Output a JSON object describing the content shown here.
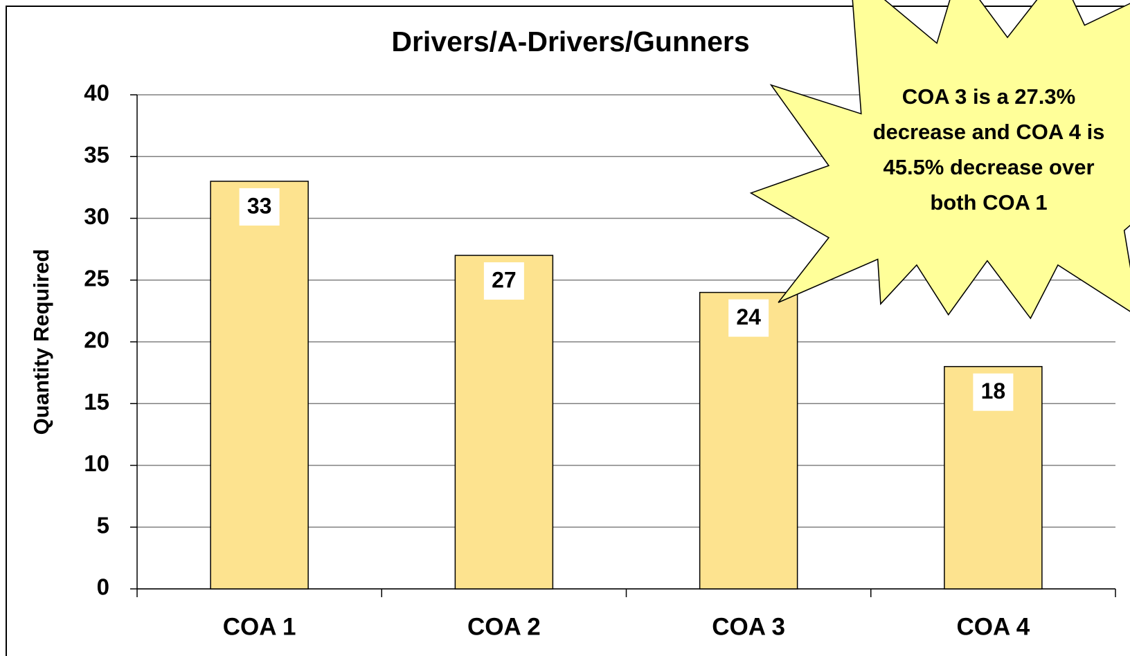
{
  "chart_data": {
    "type": "bar",
    "title": "Drivers/A-Drivers/Gunners",
    "y_label": "Quantity Required",
    "categories": [
      "COA 1",
      "COA 2",
      "COA 3",
      "COA 4"
    ],
    "values": [
      33,
      27,
      24,
      18
    ],
    "color": "#fde38f",
    "ylim": [
      0,
      40
    ],
    "yticks": [
      0,
      5,
      10,
      15,
      20,
      25,
      30,
      35,
      40
    ],
    "grid": true,
    "annotation": [
      "COA 3 is a 27.3%",
      "decrease and COA 4 is",
      "45.5% decrease over",
      "both COA 1"
    ]
  }
}
